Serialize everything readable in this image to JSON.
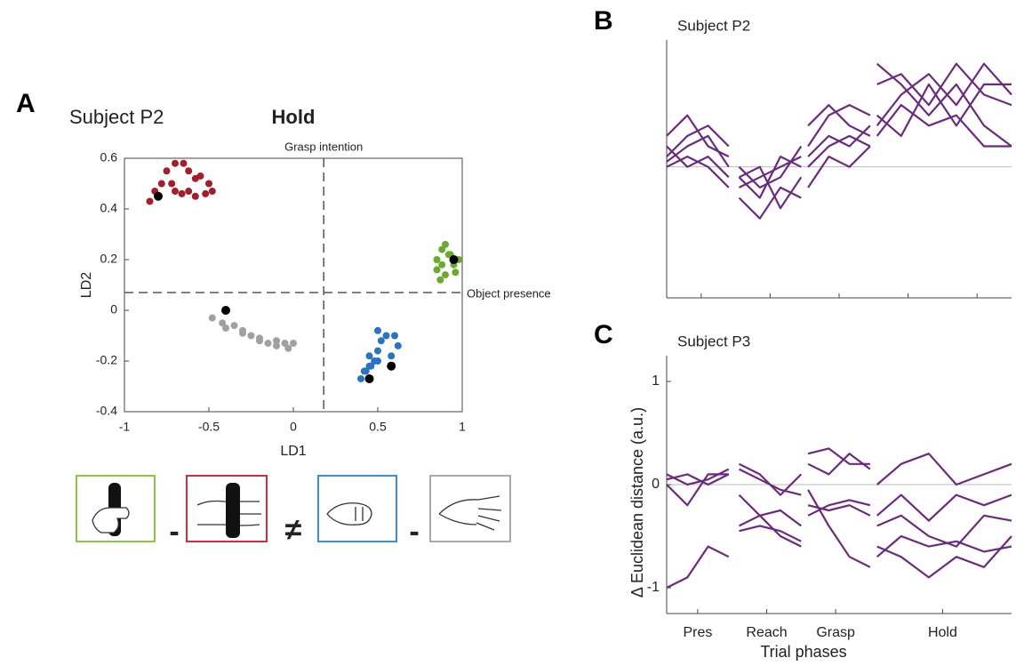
{
  "icon_row": {
    "operators": [
      "-",
      "≠",
      "-"
    ]
  },
  "chart_data": [
    {
      "type": "scatter",
      "panel": "A",
      "subject": "Subject P2",
      "title": "Hold",
      "xlabel": "LD1",
      "ylabel": "LD2",
      "xlim": [
        -1,
        1
      ],
      "ylim": [
        -0.4,
        0.6
      ],
      "xticks": [
        -1,
        -0.5,
        0,
        0.5,
        1
      ],
      "yticks": [
        -0.4,
        -0.2,
        0,
        0.2,
        0.4,
        0.6
      ],
      "box": true,
      "vlines": [
        {
          "value": 0.18,
          "label": "Grasp intention"
        }
      ],
      "hlines": [
        {
          "value": 0.07,
          "label": "Object presence"
        }
      ],
      "series": [
        {
          "color": "#a51c2a",
          "x": [
            -0.85,
            -0.82,
            -0.78,
            -0.75,
            -0.7,
            -0.65,
            -0.62,
            -0.58,
            -0.55,
            -0.5,
            -0.48,
            -0.52,
            -0.58,
            -0.62,
            -0.66,
            -0.7,
            -0.72
          ],
          "values": [
            0.43,
            0.47,
            0.5,
            0.55,
            0.58,
            0.58,
            0.55,
            0.52,
            0.53,
            0.5,
            0.47,
            0.46,
            0.45,
            0.47,
            0.46,
            0.47,
            0.5
          ]
        },
        {
          "color": "#6aab2e",
          "x": [
            0.85,
            0.88,
            0.9,
            0.92,
            0.95,
            0.98,
            0.96,
            0.9,
            0.87,
            0.85,
            0.88,
            0.93
          ],
          "values": [
            0.2,
            0.24,
            0.26,
            0.22,
            0.18,
            0.2,
            0.15,
            0.14,
            0.12,
            0.16,
            0.18,
            0.22
          ]
        },
        {
          "color": "#2a73c0",
          "x": [
            0.4,
            0.42,
            0.45,
            0.48,
            0.5,
            0.52,
            0.55,
            0.6,
            0.62,
            0.58,
            0.5,
            0.46,
            0.43,
            0.45,
            0.5
          ],
          "values": [
            -0.27,
            -0.24,
            -0.22,
            -0.2,
            -0.16,
            -0.12,
            -0.1,
            -0.1,
            -0.14,
            -0.18,
            -0.2,
            -0.22,
            -0.24,
            -0.18,
            -0.08
          ]
        },
        {
          "color": "#a0a0a0",
          "x": [
            -0.48,
            -0.42,
            -0.35,
            -0.3,
            -0.25,
            -0.2,
            -0.15,
            -0.1,
            -0.05,
            0,
            -0.03,
            -0.1,
            -0.2,
            -0.3,
            -0.4
          ],
          "values": [
            -0.03,
            -0.05,
            -0.06,
            -0.08,
            -0.1,
            -0.12,
            -0.13,
            -0.12,
            -0.13,
            -0.13,
            -0.15,
            -0.14,
            -0.11,
            -0.09,
            -0.07
          ]
        },
        {
          "color": "#000000",
          "x": [
            -0.8,
            0.95,
            0.45,
            0.58,
            -0.4
          ],
          "values": [
            0.45,
            0.2,
            -0.27,
            -0.22,
            0
          ]
        }
      ]
    },
    {
      "type": "line",
      "panel": "B",
      "title": "Subject P2",
      "xlim": [
        0,
        5
      ],
      "ylim": [
        -1.27,
        1.23
      ],
      "zero_line": true,
      "x": [
        0,
        0.3,
        0.6,
        0.9,
        0.97,
        1.05,
        1.35,
        1.65,
        1.95,
        2,
        2.05,
        2.35,
        2.65,
        2.95,
        3,
        3.05,
        3.4,
        3.8,
        4.2,
        4.6,
        5
      ],
      "xticks": [
        0.5,
        1.5,
        2.5,
        3.5,
        4.5
      ],
      "series": [
        {
          "color": "#6b2a7e",
          "values": [
            0.3,
            0.5,
            0.2,
            0.1,
            null,
            -0.1,
            -0.3,
            0.1,
            0.0,
            null,
            0.4,
            0.6,
            0.4,
            0.3,
            null,
            0.8,
            0.9,
            0.6,
            1.0,
            0.7,
            0.6
          ]
        },
        {
          "color": "#6b2a7e",
          "values": [
            0.1,
            0.3,
            0.4,
            0.2,
            null,
            0.0,
            -0.2,
            -0.1,
            0.2,
            null,
            0.2,
            0.5,
            0.6,
            0.5,
            null,
            0.4,
            0.7,
            0.9,
            0.6,
            1.0,
            0.7
          ]
        },
        {
          "color": "#6b2a7e",
          "values": [
            0.2,
            0.0,
            0.1,
            -0.1,
            null,
            -0.2,
            -0.1,
            0.0,
            0.1,
            null,
            0.0,
            0.2,
            0.3,
            0.2,
            null,
            1.0,
            0.8,
            0.5,
            0.8,
            0.4,
            0.2
          ]
        },
        {
          "color": "#6b2a7e",
          "values": [
            0.0,
            0.1,
            0.0,
            -0.2,
            null,
            -0.3,
            -0.5,
            -0.2,
            -0.3,
            null,
            -0.2,
            0.1,
            0.0,
            0.2,
            null,
            0.3,
            0.6,
            0.4,
            0.5,
            0.2,
            0.2
          ]
        },
        {
          "color": "#6b2a7e",
          "values": [
            0.05,
            0.2,
            0.3,
            0.0,
            null,
            -0.1,
            0.0,
            -0.4,
            -0.1,
            null,
            0.1,
            0.3,
            0.2,
            0.4,
            null,
            0.5,
            0.3,
            0.8,
            0.4,
            0.8,
            0.8
          ]
        }
      ]
    },
    {
      "type": "line",
      "panel": "C",
      "title": "Subject P3",
      "xlabel": "Trial phases",
      "ylabel": "Δ Euclidean distance (a.u.)",
      "xlim": [
        0,
        5
      ],
      "ylim": [
        -1.25,
        1.25
      ],
      "yticks": [
        -1,
        0,
        1
      ],
      "zero_line": true,
      "x": [
        0,
        0.3,
        0.6,
        0.9,
        0.97,
        1.05,
        1.35,
        1.65,
        1.95,
        2,
        2.05,
        2.35,
        2.65,
        2.95,
        3,
        3.05,
        3.4,
        3.8,
        4.2,
        4.6,
        5
      ],
      "xticks": [
        {
          "value": 0.45,
          "label": "Pres"
        },
        {
          "value": 1.45,
          "label": "Reach"
        },
        {
          "value": 2.45,
          "label": "Grasp"
        },
        {
          "value": 4,
          "label": "Hold"
        }
      ],
      "series": [
        {
          "color": "#6b2a7e",
          "values": [
            0.1,
            0.0,
            0.05,
            0.15,
            null,
            0.2,
            0.1,
            -0.1,
            0.1,
            null,
            0.3,
            0.35,
            0.2,
            0.2,
            null,
            0.0,
            0.2,
            0.3,
            0.0,
            0.1,
            0.2
          ]
        },
        {
          "color": "#6b2a7e",
          "values": [
            0.05,
            0.1,
            0.0,
            0.1,
            null,
            0.15,
            0.05,
            -0.05,
            -0.1,
            null,
            0.2,
            0.1,
            0.3,
            0.15,
            null,
            -0.3,
            -0.1,
            -0.35,
            -0.1,
            -0.2,
            -0.1
          ]
        },
        {
          "color": "#6b2a7e",
          "values": [
            0.0,
            -0.2,
            0.1,
            0.1,
            null,
            -0.1,
            -0.3,
            -0.5,
            -0.6,
            null,
            -0.05,
            -0.4,
            -0.7,
            -0.8,
            null,
            -0.4,
            -0.3,
            -0.5,
            -0.6,
            -0.3,
            -0.35
          ]
        },
        {
          "color": "#6b2a7e",
          "values": [
            -1.0,
            -0.9,
            -0.6,
            -0.7,
            null,
            -0.4,
            -0.3,
            -0.25,
            -0.4,
            null,
            -0.3,
            -0.2,
            -0.15,
            -0.2,
            null,
            -0.6,
            -0.7,
            -0.9,
            -0.7,
            -0.8,
            -0.5
          ]
        },
        {
          "color": "#6b2a7e",
          "values": [
            null,
            null,
            null,
            null,
            null,
            -0.45,
            -0.4,
            -0.45,
            -0.55,
            null,
            -0.2,
            -0.25,
            -0.2,
            -0.3,
            null,
            -0.7,
            -0.5,
            -0.6,
            -0.55,
            -0.65,
            -0.6
          ]
        }
      ]
    }
  ]
}
